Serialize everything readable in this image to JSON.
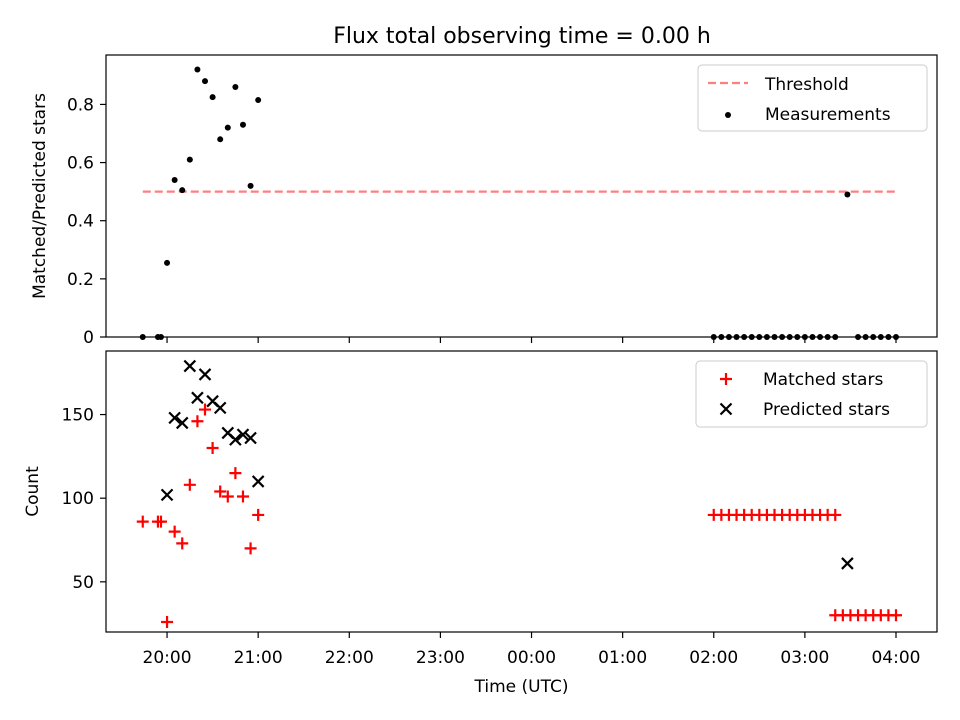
{
  "title": "Flux total observing time = 0.00 h",
  "colors": {
    "threshold": "#ff7f7f",
    "measurement": "#000000",
    "matched": "#ff0000",
    "predicted": "#000000"
  },
  "chart_data": [
    {
      "type": "scatter",
      "ylabel": "Matched/Predicted stars",
      "ylim": [
        0,
        0.97
      ],
      "yticks": [
        0.0,
        0.2,
        0.4,
        0.6,
        0.8
      ],
      "legend": [
        "Threshold",
        "Measurements"
      ],
      "legend_position": "top-right",
      "threshold": {
        "name": "Threshold",
        "value": 0.5,
        "x_start": "19:44",
        "x_end": "04:00"
      },
      "measurements": {
        "name": "Measurements",
        "points": [
          [
            "19:44",
            0.0
          ],
          [
            "19:54",
            0.0
          ],
          [
            "19:56",
            0.0
          ],
          [
            "20:00",
            0.255
          ],
          [
            "20:05",
            0.54
          ],
          [
            "20:10",
            0.505
          ],
          [
            "20:15",
            0.61
          ],
          [
            "20:20",
            0.92
          ],
          [
            "20:25",
            0.88
          ],
          [
            "20:30",
            0.825
          ],
          [
            "20:35",
            0.68
          ],
          [
            "20:40",
            0.72
          ],
          [
            "20:45",
            0.86
          ],
          [
            "20:50",
            0.73
          ],
          [
            "20:55",
            0.52
          ],
          [
            "21:00",
            0.815
          ],
          [
            "02:00",
            0.0
          ],
          [
            "02:05",
            0.0
          ],
          [
            "02:10",
            0.0
          ],
          [
            "02:15",
            0.0
          ],
          [
            "02:20",
            0.0
          ],
          [
            "02:25",
            0.0
          ],
          [
            "02:30",
            0.0
          ],
          [
            "02:35",
            0.0
          ],
          [
            "02:40",
            0.0
          ],
          [
            "02:45",
            0.0
          ],
          [
            "02:50",
            0.0
          ],
          [
            "02:55",
            0.0
          ],
          [
            "03:00",
            0.0
          ],
          [
            "03:05",
            0.0
          ],
          [
            "03:10",
            0.0
          ],
          [
            "03:15",
            0.0
          ],
          [
            "03:20",
            0.0
          ],
          [
            "03:28",
            0.49
          ],
          [
            "03:35",
            0.0
          ],
          [
            "03:40",
            0.0
          ],
          [
            "03:45",
            0.0
          ],
          [
            "03:50",
            0.0
          ],
          [
            "03:55",
            0.0
          ],
          [
            "04:00",
            0.0
          ]
        ]
      }
    },
    {
      "type": "scatter",
      "xlabel": "Time (UTC)",
      "ylabel": "Count",
      "ylim": [
        20,
        188
      ],
      "yticks": [
        50,
        100,
        150
      ],
      "xticks": [
        "20:00",
        "21:00",
        "22:00",
        "23:00",
        "00:00",
        "01:00",
        "02:00",
        "03:00",
        "04:00"
      ],
      "legend": [
        "Matched stars",
        "Predicted stars"
      ],
      "legend_position": "top-right",
      "series": [
        {
          "name": "Matched stars",
          "marker": "+",
          "points": [
            [
              "19:44",
              86
            ],
            [
              "19:54",
              86
            ],
            [
              "19:56",
              86
            ],
            [
              "20:00",
              26
            ],
            [
              "20:05",
              80
            ],
            [
              "20:10",
              73
            ],
            [
              "20:15",
              108
            ],
            [
              "20:20",
              146
            ],
            [
              "20:25",
              153
            ],
            [
              "20:30",
              130
            ],
            [
              "20:35",
              104
            ],
            [
              "20:40",
              101
            ],
            [
              "20:45",
              115
            ],
            [
              "20:50",
              101
            ],
            [
              "20:55",
              70
            ],
            [
              "21:00",
              90
            ],
            [
              "02:00",
              90
            ],
            [
              "02:05",
              90
            ],
            [
              "02:10",
              90
            ],
            [
              "02:15",
              90
            ],
            [
              "02:20",
              90
            ],
            [
              "02:25",
              90
            ],
            [
              "02:30",
              90
            ],
            [
              "02:35",
              90
            ],
            [
              "02:40",
              90
            ],
            [
              "02:45",
              90
            ],
            [
              "02:50",
              90
            ],
            [
              "02:55",
              90
            ],
            [
              "03:00",
              90
            ],
            [
              "03:05",
              90
            ],
            [
              "03:10",
              90
            ],
            [
              "03:15",
              90
            ],
            [
              "03:20",
              90
            ],
            [
              "03:20",
              30
            ],
            [
              "03:25",
              30
            ],
            [
              "03:30",
              30
            ],
            [
              "03:35",
              30
            ],
            [
              "03:40",
              30
            ],
            [
              "03:45",
              30
            ],
            [
              "03:50",
              30
            ],
            [
              "03:55",
              30
            ],
            [
              "04:00",
              30
            ]
          ]
        },
        {
          "name": "Predicted stars",
          "marker": "x",
          "points": [
            [
              "20:00",
              102
            ],
            [
              "20:05",
              148
            ],
            [
              "20:10",
              145
            ],
            [
              "20:15",
              179
            ],
            [
              "20:20",
              160
            ],
            [
              "20:25",
              174
            ],
            [
              "20:30",
              158
            ],
            [
              "20:35",
              154
            ],
            [
              "20:40",
              139
            ],
            [
              "20:45",
              135
            ],
            [
              "20:50",
              138
            ],
            [
              "20:55",
              136
            ],
            [
              "21:00",
              110
            ],
            [
              "03:28",
              61
            ]
          ]
        }
      ]
    }
  ]
}
